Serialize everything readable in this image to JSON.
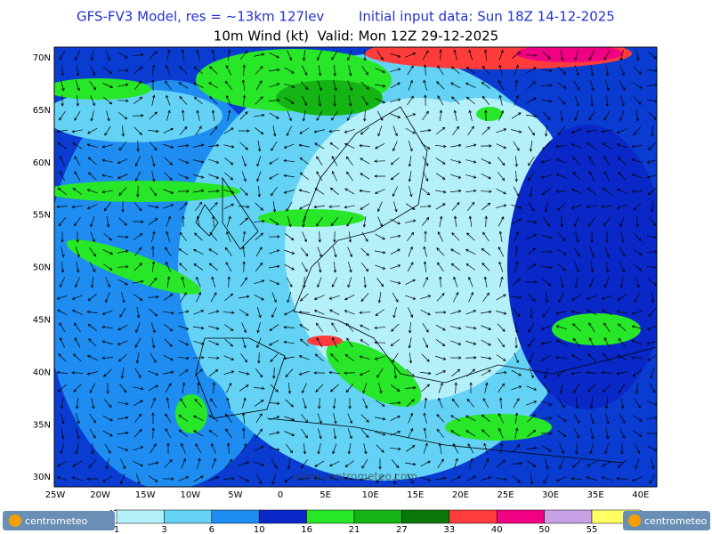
{
  "header": {
    "title": "GFS-FV3 Model, res = ~13km 127lev",
    "init": "Initial input data: Sun 18Z 14-12-2025",
    "subtitle": "10m Wind (kt)  Valid: Mon 12Z 29-12-2025"
  },
  "map": {
    "lat_labels": [
      "70N",
      "65N",
      "60N",
      "55N",
      "50N",
      "45N",
      "40N",
      "35N",
      "30N"
    ],
    "lon_labels": [
      "25W",
      "20W",
      "15W",
      "10W",
      "5W",
      "0",
      "5E",
      "10E",
      "15E",
      "20E",
      "25E",
      "30E",
      "35E",
      "40E"
    ],
    "watermark": "www.centrometeo.com"
  },
  "colorbar": {
    "labels": [
      1,
      3,
      6,
      10,
      16,
      21,
      27,
      33,
      40,
      50,
      55
    ],
    "colors": [
      "#b4f0fa",
      "#64d2f5",
      "#1e8cf0",
      "#0a28c8",
      "#28e628",
      "#14b414",
      "#0a780a",
      "#ff3c3c",
      "#f00082",
      "#c8a0e6",
      "#ffff64"
    ]
  },
  "logos": {
    "left": "centrometeo",
    "right": "centrometeo"
  }
}
